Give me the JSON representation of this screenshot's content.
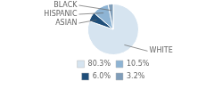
{
  "chart_data": {
    "type": "pie",
    "categories": [
      "WHITE",
      "ASIAN",
      "HISPANIC",
      "BLACK"
    ],
    "values": [
      80.3,
      6.0,
      10.5,
      3.2
    ],
    "colors": [
      "#d6e4f0",
      "#1f4e79",
      "#8eb4d4",
      "#7f9db9"
    ],
    "legend": "bottom",
    "legend_entries": [
      {
        "label": "80.3%",
        "color": "#d6e4f0"
      },
      {
        "label": "10.5%",
        "color": "#8eb4d4"
      },
      {
        "label": "6.0%",
        "color": "#1f4e79"
      },
      {
        "label": "3.2%",
        "color": "#7f9db9"
      }
    ]
  }
}
